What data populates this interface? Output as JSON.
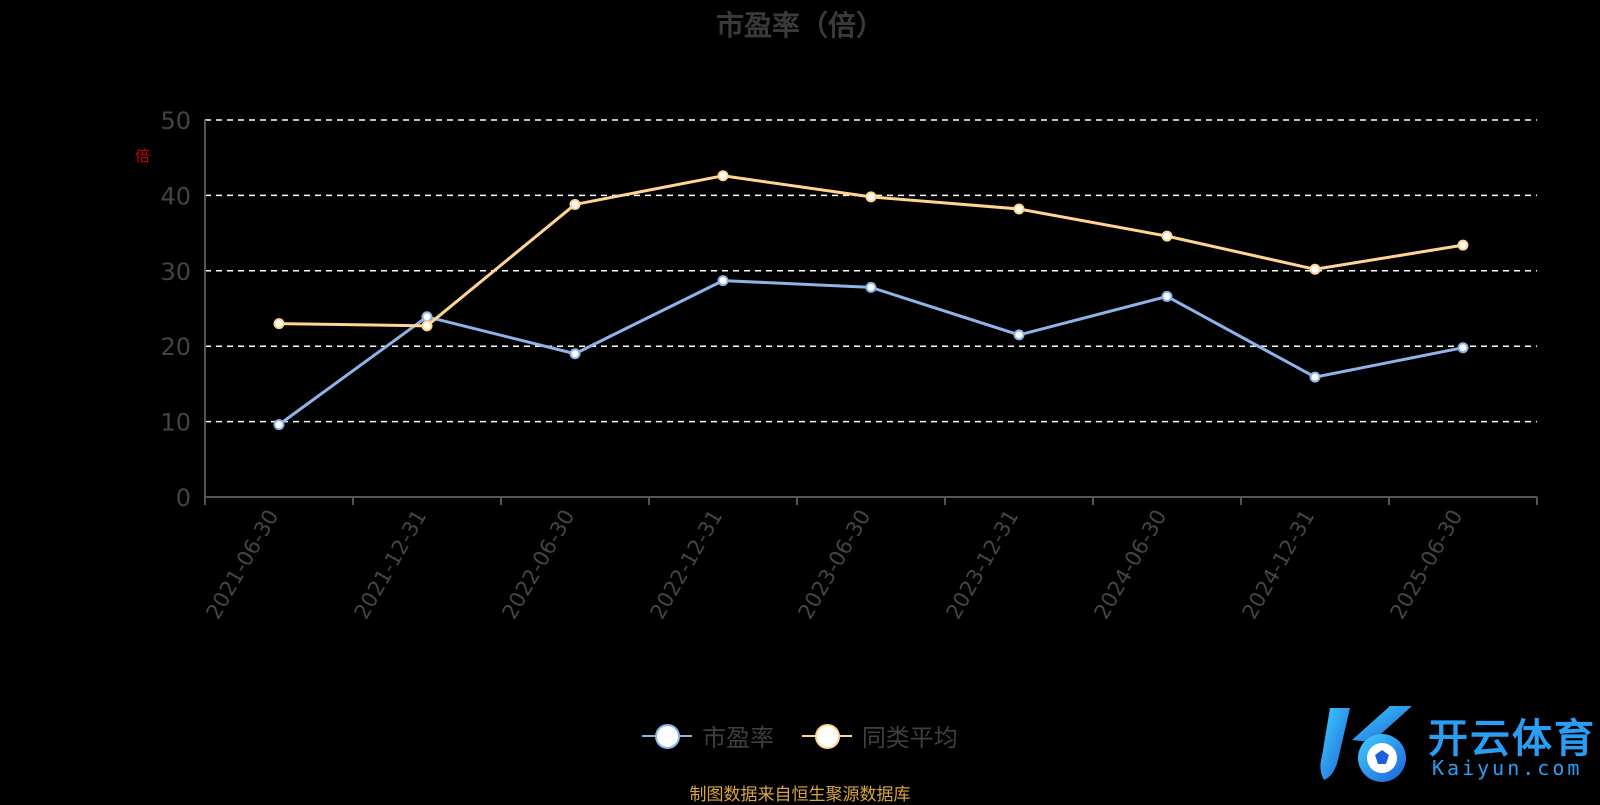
{
  "chart_data": {
    "type": "line",
    "title": "市盈率（倍）",
    "ylabel": "倍",
    "ylim": [
      0,
      50
    ],
    "yticks": [
      0,
      10,
      20,
      30,
      40,
      50
    ],
    "grid": true,
    "legend_position": "bottom",
    "categories": [
      "2021-06-30",
      "2021-12-31",
      "2022-06-30",
      "2022-12-31",
      "2023-06-30",
      "2023-12-31",
      "2024-06-30",
      "2024-12-31",
      "2025-06-30"
    ],
    "series": [
      {
        "name": "市盈率",
        "color": "#8fb3e8",
        "values": [
          9.6,
          23.9,
          19.0,
          28.7,
          27.8,
          21.5,
          26.6,
          15.9,
          19.8
        ]
      },
      {
        "name": "同类平均",
        "color": "#ffd591",
        "values": [
          23.0,
          22.7,
          38.8,
          42.6,
          39.8,
          38.2,
          34.6,
          30.2,
          33.4
        ]
      }
    ]
  },
  "source_text": "制图数据来自恒生聚源数据库",
  "watermark": {
    "brand_cn": "开云体育",
    "brand_en": "Kaiyun.com"
  },
  "colors": {
    "background": "#000000",
    "grid": "#ffffff",
    "axis": "#555555",
    "tick_text": "#444444",
    "source": "#d9a441"
  }
}
